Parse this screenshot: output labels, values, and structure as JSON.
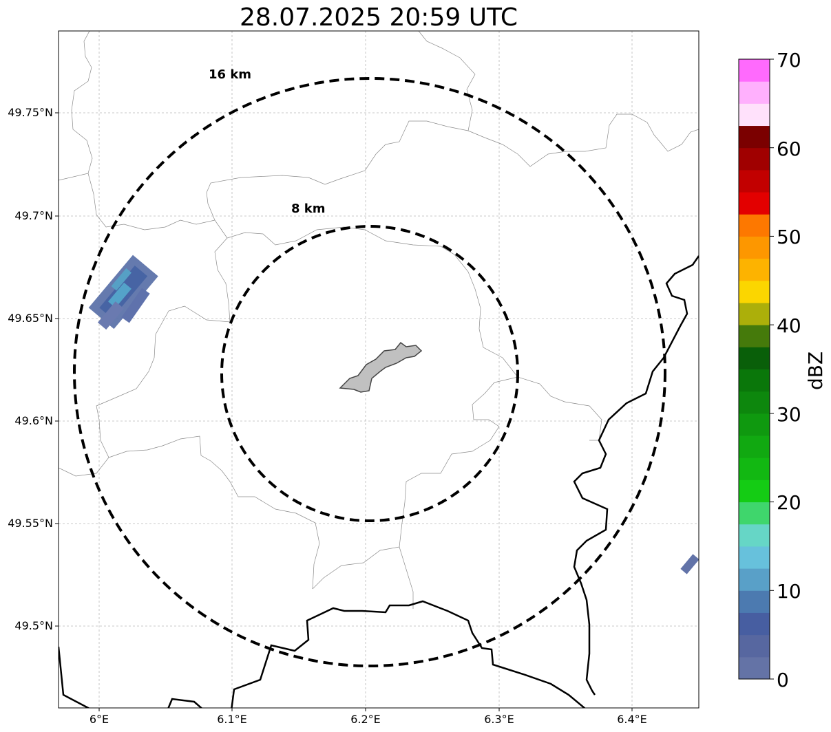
{
  "title": "28.07.2025 20:59 UTC",
  "map": {
    "lat_labels": [
      "49.75°N",
      "49.7°N",
      "49.65°N",
      "49.6°N",
      "49.55°N",
      "49.5°N"
    ],
    "lon_labels": [
      "6°E",
      "6.1°E",
      "6.2°E",
      "6.3°E",
      "6.4°E"
    ],
    "rings": [
      {
        "label": "16 km",
        "radius_km": 16
      },
      {
        "label": "8 km",
        "radius_km": 8
      }
    ],
    "grid": true
  },
  "colorbar": {
    "label": "dBZ",
    "ticks": [
      "0",
      "10",
      "20",
      "30",
      "40",
      "50",
      "60",
      "70"
    ],
    "min": 0,
    "max": 70,
    "step": 2.5,
    "colors": [
      "#6473a6",
      "#5767a0",
      "#475ea1",
      "#4c7ab0",
      "#59a0c8",
      "#67c1dc",
      "#66d6c6",
      "#3fd66c",
      "#14cc14",
      "#12b812",
      "#11a911",
      "#0f990f",
      "#0d870d",
      "#0a770a",
      "#095f09",
      "#457a0b",
      "#acaf0a",
      "#fbd600",
      "#fdb300",
      "#fd9700",
      "#fd7800",
      "#e30000",
      "#c20000",
      "#a00000",
      "#7b0000",
      "#ffe1fb",
      "#ffb0fd",
      "#ff6afd",
      "#f133f0"
    ]
  }
}
